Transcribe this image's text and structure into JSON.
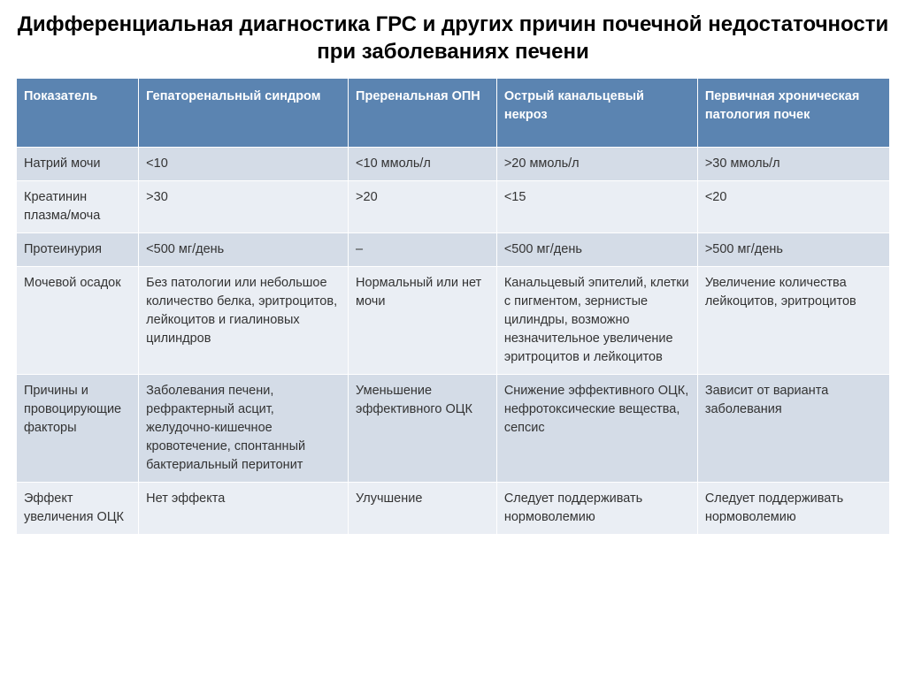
{
  "title": "Дифференциальная диагностика ГРС и других причин почечной недостаточности при заболеваниях печени",
  "columns": [
    "Показатель",
    "Гепаторенальный синдром",
    "Преренальная ОПН",
    "Острый канальцевый некроз",
    "Первичная хроническая патология почек"
  ],
  "rows": [
    {
      "band": "a",
      "cells": [
        "Натрий мочи",
        "<10",
        "<10 ммоль/л",
        ">20 ммоль/л",
        ">30 ммоль/л"
      ]
    },
    {
      "band": "b",
      "cells": [
        "Креатинин плазма/моча",
        ">30",
        ">20",
        "<15",
        "<20"
      ]
    },
    {
      "band": "a",
      "cells": [
        "Протеинурия",
        "<500 мг/день",
        "–",
        "<500 мг/день",
        ">500 мг/день"
      ]
    },
    {
      "band": "b",
      "cells": [
        "Мочевой осадок",
        "Без патологии или небольшое количество белка, эритроцитов, лейкоцитов и гиалиновых цилиндров",
        "Нормальный или нет мочи",
        "Канальцевый эпителий, клетки с пигментом, зернистые цилиндры, возможно незначительное увеличение эритроцитов и лейкоцитов",
        "Увеличение количества лейкоцитов, эритроцитов"
      ]
    },
    {
      "band": "a",
      "cells": [
        "Причины и провоцирующие факторы",
        "Заболевания печени, рефрактерный асцит, желудочно-кишечное кровотечение, спонтанный бактериальный перитонит",
        "Уменьшение эффективного ОЦК",
        "Снижение эффективного ОЦК, нефротоксические вещества, сепсис",
        "Зависит от варианта заболевания"
      ]
    },
    {
      "band": "b",
      "cells": [
        "Эффект увеличения ОЦК",
        "Нет эффекта",
        "Улучшение",
        "Следует поддерживать нормоволемию",
        "Следует поддерживать нормоволемию"
      ]
    }
  ],
  "style": {
    "header_bg": "#5b84b1",
    "header_fg": "#ffffff",
    "band_a_bg": "#d4dce7",
    "band_b_bg": "#eaeef4",
    "text_color": "#333333",
    "title_fontsize": 24,
    "cell_fontsize": 14.5
  }
}
